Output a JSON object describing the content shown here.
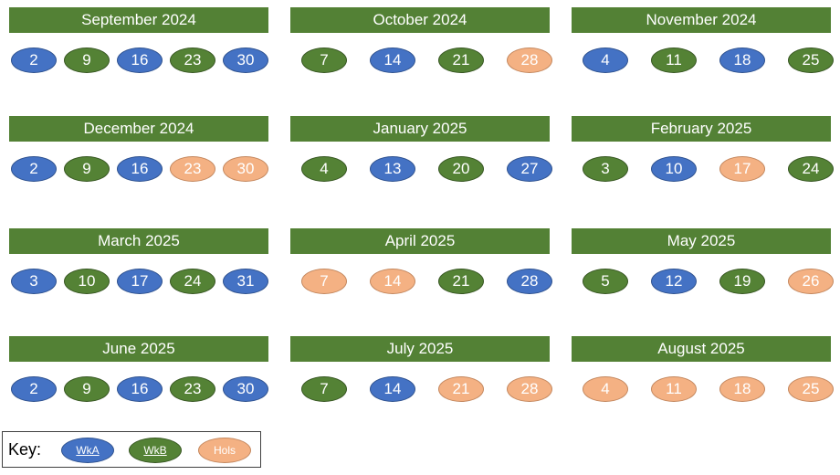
{
  "colors": {
    "wkA": "#4472c4",
    "wkB": "#548235",
    "hols": "#f4b183",
    "header": "#538135"
  },
  "months": [
    {
      "title": "September 2024",
      "weeks": [
        {
          "day": "2",
          "type": "A"
        },
        {
          "day": "9",
          "type": "B"
        },
        {
          "day": "16",
          "type": "A"
        },
        {
          "day": "23",
          "type": "B"
        },
        {
          "day": "30",
          "type": "A"
        }
      ]
    },
    {
      "title": "October 2024",
      "weeks": [
        {
          "day": "7",
          "type": "B"
        },
        {
          "day": "14",
          "type": "A"
        },
        {
          "day": "21",
          "type": "B"
        },
        {
          "day": "28",
          "type": "H"
        }
      ]
    },
    {
      "title": "November 2024",
      "weeks": [
        {
          "day": "4",
          "type": "A"
        },
        {
          "day": "11",
          "type": "B"
        },
        {
          "day": "18",
          "type": "A"
        },
        {
          "day": "25",
          "type": "B"
        }
      ]
    },
    {
      "title": "December 2024",
      "weeks": [
        {
          "day": "2",
          "type": "A"
        },
        {
          "day": "9",
          "type": "B"
        },
        {
          "day": "16",
          "type": "A"
        },
        {
          "day": "23",
          "type": "H"
        },
        {
          "day": "30",
          "type": "H"
        }
      ]
    },
    {
      "title": "January 2025",
      "weeks": [
        {
          "day": "4",
          "type": "B"
        },
        {
          "day": "13",
          "type": "A"
        },
        {
          "day": "20",
          "type": "B"
        },
        {
          "day": "27",
          "type": "A"
        }
      ]
    },
    {
      "title": "February 2025",
      "weeks": [
        {
          "day": "3",
          "type": "B"
        },
        {
          "day": "10",
          "type": "A"
        },
        {
          "day": "17",
          "type": "H"
        },
        {
          "day": "24",
          "type": "B"
        }
      ]
    },
    {
      "title": "March 2025",
      "weeks": [
        {
          "day": "3",
          "type": "A"
        },
        {
          "day": "10",
          "type": "B"
        },
        {
          "day": "17",
          "type": "A"
        },
        {
          "day": "24",
          "type": "B"
        },
        {
          "day": "31",
          "type": "A"
        }
      ]
    },
    {
      "title": "April 2025",
      "weeks": [
        {
          "day": "7",
          "type": "H"
        },
        {
          "day": "14",
          "type": "H"
        },
        {
          "day": "21",
          "type": "B"
        },
        {
          "day": "28",
          "type": "A"
        }
      ]
    },
    {
      "title": "May 2025",
      "weeks": [
        {
          "day": "5",
          "type": "B"
        },
        {
          "day": "12",
          "type": "A"
        },
        {
          "day": "19",
          "type": "B"
        },
        {
          "day": "26",
          "type": "H"
        }
      ]
    },
    {
      "title": "June 2025",
      "weeks": [
        {
          "day": "2",
          "type": "A"
        },
        {
          "day": "9",
          "type": "B"
        },
        {
          "day": "16",
          "type": "A"
        },
        {
          "day": "23",
          "type": "B"
        },
        {
          "day": "30",
          "type": "A"
        }
      ]
    },
    {
      "title": "July 2025",
      "weeks": [
        {
          "day": "7",
          "type": "B"
        },
        {
          "day": "14",
          "type": "A"
        },
        {
          "day": "21",
          "type": "H"
        },
        {
          "day": "28",
          "type": "H"
        }
      ]
    },
    {
      "title": "August 2025",
      "weeks": [
        {
          "day": "4",
          "type": "H"
        },
        {
          "day": "11",
          "type": "H"
        },
        {
          "day": "18",
          "type": "H"
        },
        {
          "day": "25",
          "type": "H"
        }
      ]
    }
  ],
  "key": {
    "label": "Key:",
    "wkA": "WkA",
    "wkB": "WkB",
    "hols": "Hols"
  }
}
